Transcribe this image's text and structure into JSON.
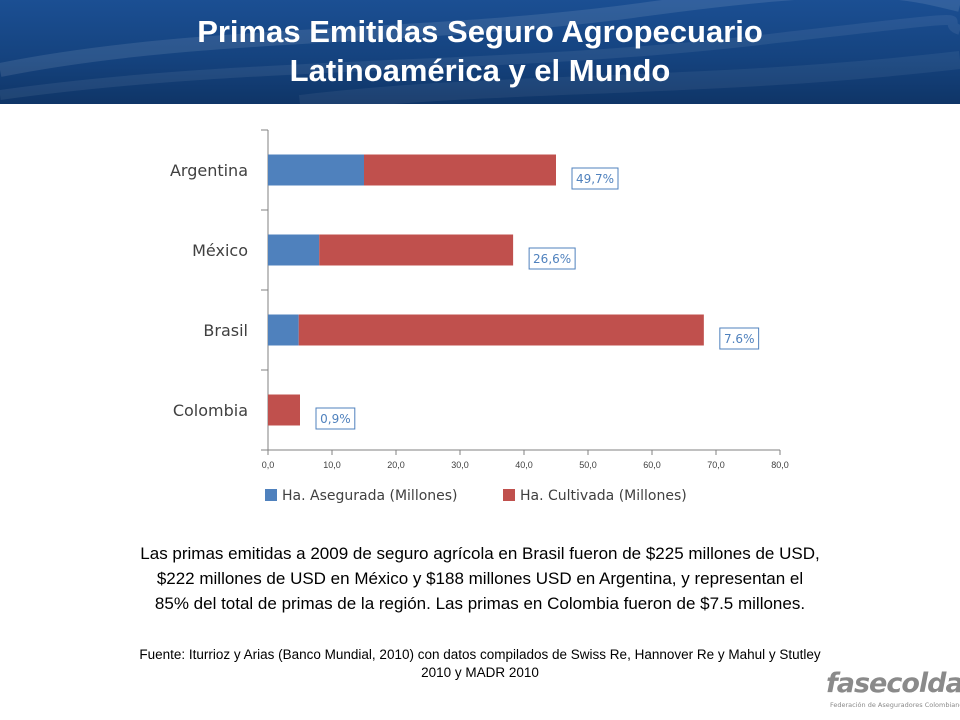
{
  "header": {
    "title_line1": "Primas Emitidas Seguro Agropecuario",
    "title_line2": "Latinoamérica y el Mundo"
  },
  "chart_data": {
    "type": "bar",
    "orientation": "horizontal",
    "stacked": true,
    "categories": [
      "Argentina",
      "México",
      "Brasil",
      "Colombia"
    ],
    "series": [
      {
        "name": "Ha. Asegurada (Millones)",
        "color": "#4f81bd",
        "values": [
          15.0,
          8.0,
          4.8,
          0.0
        ]
      },
      {
        "name": "Ha. Cultivada (Millones)",
        "color": "#c0504d",
        "values": [
          30.0,
          30.3,
          63.3,
          5.0
        ]
      }
    ],
    "annotations": [
      "49,7%",
      "26,6%",
      "7.6%",
      "0,9%"
    ],
    "xlim": [
      0,
      80
    ],
    "xticks": [
      "0,0",
      "10,0",
      "20,0",
      "30,0",
      "40,0",
      "50,0",
      "60,0",
      "70,0",
      "80,0"
    ],
    "grid": false,
    "legend": "bottom",
    "title": "",
    "xlabel": "",
    "ylabel": ""
  },
  "caption": {
    "line1": "Las primas emitidas a 2009 de seguro agrícola en Brasil fueron de $225 millones de USD,",
    "line2": "$222 millones de USD en México y $188 millones USD en Argentina, y representan el",
    "line3": "85% del total de primas de la región.  Las primas en Colombia fueron de $7.5 millones."
  },
  "source": {
    "line1": "Fuente: Iturrioz y Arias (Banco Mundial, 2010) con datos compilados de Swiss Re, Hannover Re y Mahul y Stutley",
    "line2": "2010 y MADR 2010"
  },
  "logo": {
    "word": "fasecolda",
    "subtitle": "Federación de Aseguradores Colombianos"
  }
}
